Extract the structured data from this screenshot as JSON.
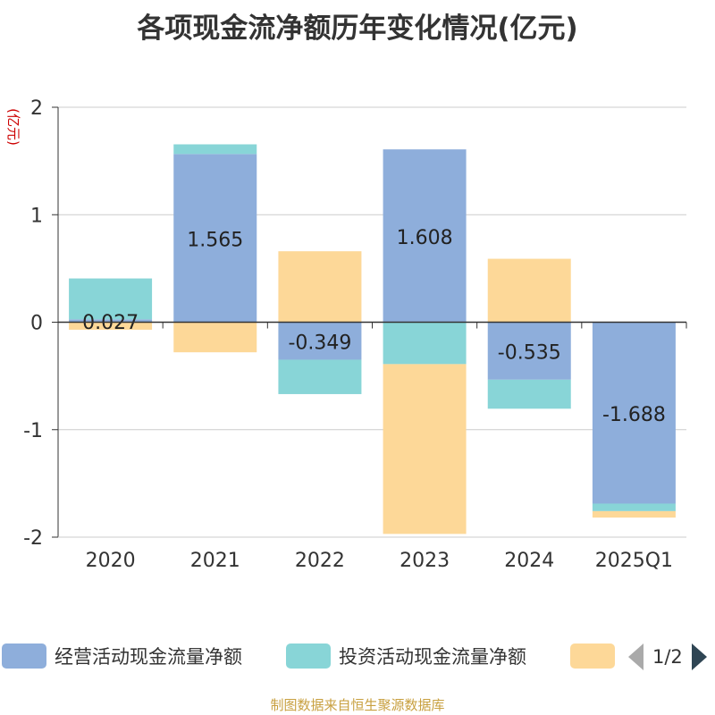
{
  "chart_data": {
    "type": "bar",
    "stacked": true,
    "title": "各项现金流净额历年变化情况(亿元)",
    "ylabel": "(亿元)",
    "categories": [
      "2020",
      "2021",
      "2022",
      "2023",
      "2024",
      "2025Q1"
    ],
    "ylim": [
      -2,
      2
    ],
    "yticks": [
      "2",
      "1",
      "0",
      "-1",
      "-2"
    ],
    "grid": true,
    "series": [
      {
        "name": "经营活动现金流量净额",
        "color": "#8eaedb",
        "values": [
          0.027,
          1.565,
          -0.349,
          1.608,
          -0.535,
          -1.688
        ],
        "labels": [
          "0.027",
          "1.565",
          "-0.349",
          "1.608",
          "-0.535",
          "-1.688"
        ]
      },
      {
        "name": "投资活动现金流量净额",
        "color": "#88d5d7",
        "values": [
          0.38,
          0.09,
          -0.32,
          -0.39,
          -0.27,
          -0.07
        ]
      },
      {
        "name": "",
        "color": "#fdd898",
        "values": [
          -0.07,
          -0.28,
          0.66,
          -1.58,
          0.59,
          -0.06
        ]
      }
    ],
    "legend_position": "bottom"
  },
  "legend": {
    "page_indicator": "1/2"
  },
  "footer": "制图数据来自恒生聚源数据库"
}
